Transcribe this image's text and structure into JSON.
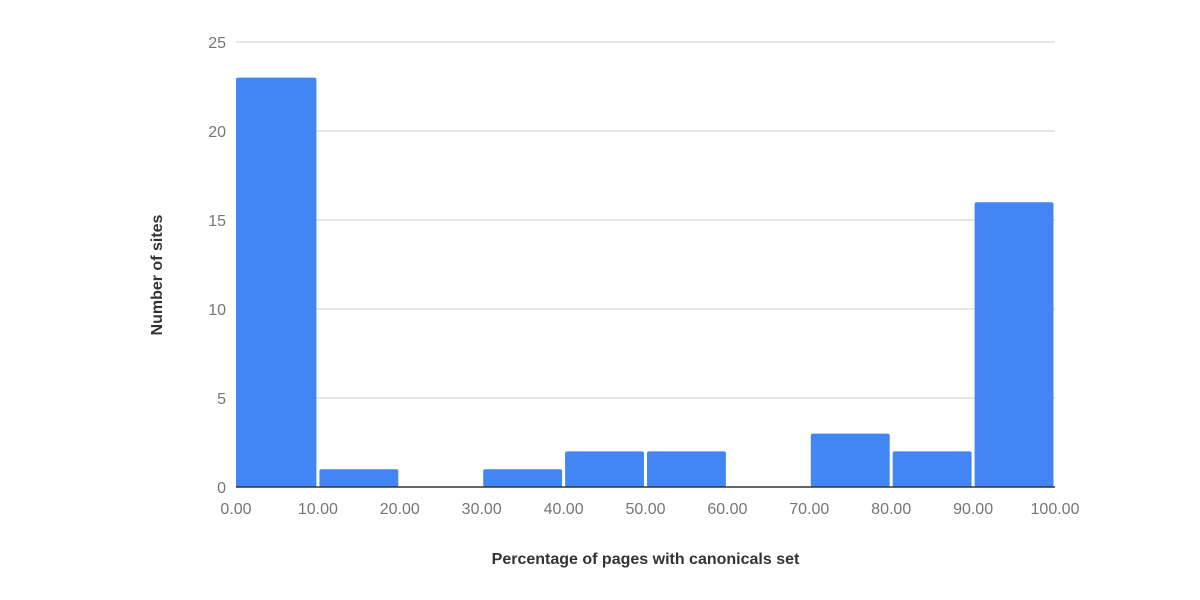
{
  "chart_data": {
    "type": "bar",
    "title": "",
    "xlabel": "Percentage of pages with canonicals set",
    "ylabel": "Number of sites",
    "bin_edges": [
      0,
      10,
      20,
      30,
      40,
      50,
      60,
      70,
      80,
      90,
      100
    ],
    "x_tick_labels": [
      "0.00",
      "10.00",
      "20.00",
      "30.00",
      "40.00",
      "50.00",
      "60.00",
      "70.00",
      "80.00",
      "90.00",
      "100.00"
    ],
    "values": [
      23,
      1,
      0,
      1,
      2,
      2,
      0,
      3,
      2,
      16
    ],
    "xlim": [
      0,
      100
    ],
    "ylim": [
      0,
      25
    ],
    "y_ticks": [
      0,
      5,
      10,
      15,
      20,
      25
    ],
    "grid": true,
    "legend": "none",
    "bar_color": "#4285f4"
  }
}
